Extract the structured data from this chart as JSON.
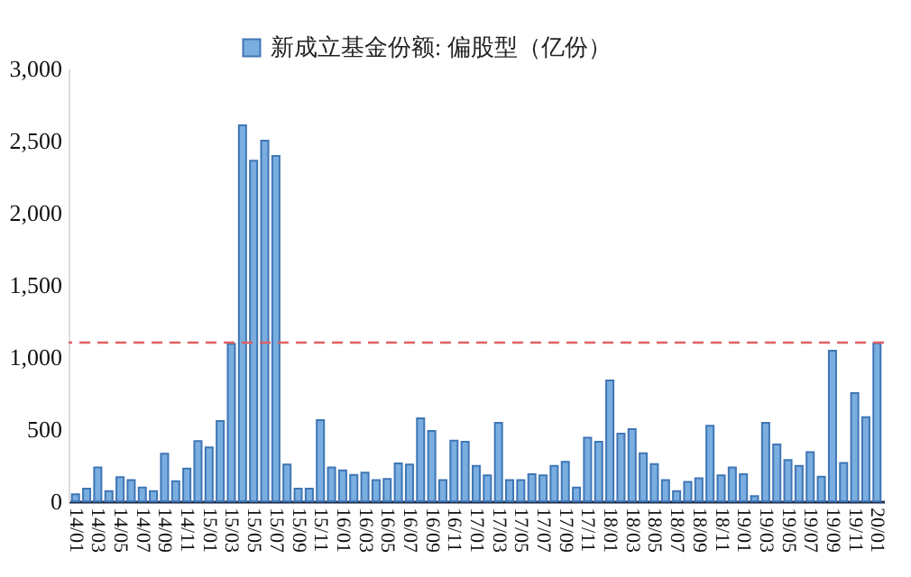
{
  "chart_data": {
    "type": "bar",
    "categories": [
      "14/01",
      null,
      "14/03",
      null,
      "14/05",
      null,
      "14/07",
      null,
      "14/09",
      null,
      "14/11",
      null,
      "15/01",
      null,
      "15/03",
      null,
      "15/05",
      null,
      "15/07",
      null,
      "15/09",
      null,
      "15/11",
      null,
      "16/01",
      null,
      "16/03",
      null,
      "16/05",
      null,
      "16/07",
      null,
      "16/09",
      null,
      "16/11",
      null,
      "17/01",
      null,
      "17/03",
      null,
      "17/05",
      null,
      "17/07",
      null,
      "17/09",
      null,
      "17/11",
      null,
      "18/01",
      null,
      "18/03",
      null,
      "18/05",
      null,
      "18/07",
      null,
      "18/09",
      null,
      "18/11",
      null,
      "19/01",
      null,
      "19/03",
      null,
      "19/05",
      null,
      "19/07",
      null,
      "19/09",
      null,
      "19/11",
      null,
      "20/01"
    ],
    "series": [
      {
        "name": "新成立基金份额: 偏股型（亿份）",
        "color": "#7aaee0",
        "values": [
          48,
          87,
          234,
          71,
          167,
          147,
          95,
          71,
          329,
          139,
          226,
          417,
          373,
          556,
          1091,
          2607,
          2361,
          2500,
          2393,
          254,
          87,
          87,
          563,
          234,
          214,
          183,
          198,
          147,
          155,
          262,
          254,
          575,
          488,
          147,
          421,
          413,
          246,
          179,
          544,
          147,
          147,
          187,
          179,
          246,
          274,
          95,
          440,
          413,
          837,
          468,
          500,
          333,
          258,
          147,
          71,
          135,
          159,
          524,
          179,
          234,
          187,
          36,
          544,
          393,
          286,
          246,
          341,
          171,
          1044,
          266,
          750,
          583,
          1095
        ]
      }
    ],
    "ylim": [
      0,
      3000
    ],
    "yticks": [
      {
        "value": 0,
        "label": "0"
      },
      {
        "value": 500,
        "label": "500"
      },
      {
        "value": 1000,
        "label": "1,000"
      },
      {
        "value": 1500,
        "label": "1,500"
      },
      {
        "value": 2000,
        "label": "2,000"
      },
      {
        "value": 2500,
        "label": "2,500"
      },
      {
        "value": 3000,
        "label": "3,000"
      }
    ],
    "ref_lines": [
      {
        "axis": "y",
        "value": 1100,
        "color": "#e06060",
        "line_style": "dashed"
      }
    ],
    "legend": "top",
    "grid": false
  }
}
